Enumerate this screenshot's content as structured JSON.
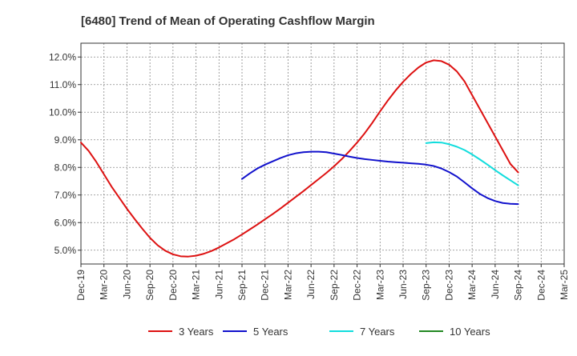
{
  "chart_data": {
    "type": "line",
    "title": "[6480]  Trend of Mean of Operating Cashflow Margin",
    "xlabel": "",
    "ylabel": "",
    "y_ticks": [
      "5.0%",
      "6.0%",
      "7.0%",
      "8.0%",
      "9.0%",
      "10.0%",
      "11.0%",
      "12.0%"
    ],
    "y_tick_values": [
      5.0,
      6.0,
      7.0,
      8.0,
      9.0,
      10.0,
      11.0,
      12.0
    ],
    "ylim": [
      4.5,
      12.5
    ],
    "x_ticks": [
      "Dec-19",
      "Mar-20",
      "Jun-20",
      "Sep-20",
      "Dec-20",
      "Mar-21",
      "Jun-21",
      "Sep-21",
      "Dec-21",
      "Mar-22",
      "Jun-22",
      "Sep-22",
      "Dec-22",
      "Mar-23",
      "Jun-23",
      "Sep-23",
      "Dec-23",
      "Mar-24",
      "Jun-24",
      "Sep-24",
      "Dec-24",
      "Mar-25"
    ],
    "grid": true,
    "legend_position": "bottom",
    "series": [
      {
        "name": "3 Years",
        "color": "#dd1111",
        "x": [
          "Dec-19",
          "Jan-20",
          "Feb-20",
          "Mar-20",
          "Apr-20",
          "May-20",
          "Jun-20",
          "Jul-20",
          "Aug-20",
          "Sep-20",
          "Oct-20",
          "Nov-20",
          "Dec-20",
          "Jan-21",
          "Feb-21",
          "Mar-21",
          "Apr-21",
          "May-21",
          "Jun-21",
          "Jul-21",
          "Aug-21",
          "Sep-21",
          "Oct-21",
          "Nov-21",
          "Dec-21",
          "Jan-22",
          "Feb-22",
          "Mar-22",
          "Apr-22",
          "May-22",
          "Jun-22",
          "Jul-22",
          "Aug-22",
          "Sep-22",
          "Oct-22",
          "Nov-22",
          "Dec-22",
          "Jan-23",
          "Feb-23",
          "Mar-23",
          "Apr-23",
          "May-23",
          "Jun-23",
          "Jul-23",
          "Aug-23",
          "Sep-23",
          "Oct-23",
          "Nov-23",
          "Dec-23",
          "Jan-24",
          "Feb-24",
          "Mar-24",
          "Apr-24",
          "May-24",
          "Jun-24",
          "Jul-24",
          "Aug-24",
          "Sep-24"
        ],
        "values": [
          8.9,
          8.6,
          8.2,
          7.75,
          7.3,
          6.9,
          6.5,
          6.13,
          5.78,
          5.45,
          5.18,
          4.98,
          4.85,
          4.78,
          4.77,
          4.8,
          4.87,
          4.97,
          5.1,
          5.25,
          5.4,
          5.57,
          5.75,
          5.93,
          6.12,
          6.31,
          6.51,
          6.72,
          6.93,
          7.14,
          7.36,
          7.58,
          7.8,
          8.04,
          8.3,
          8.59,
          8.9,
          9.24,
          9.62,
          10.03,
          10.42,
          10.78,
          11.1,
          11.38,
          11.62,
          11.8,
          11.88,
          11.85,
          11.72,
          11.48,
          11.12,
          10.62,
          10.12,
          9.62,
          9.12,
          8.62,
          8.12,
          7.82
        ]
      },
      {
        "name": "5 Years",
        "color": "#1111cc",
        "x": [
          "Sep-21",
          "Oct-21",
          "Nov-21",
          "Dec-21",
          "Jan-22",
          "Feb-22",
          "Mar-22",
          "Apr-22",
          "May-22",
          "Jun-22",
          "Jul-22",
          "Aug-22",
          "Sep-22",
          "Oct-22",
          "Nov-22",
          "Dec-22",
          "Jan-23",
          "Feb-23",
          "Mar-23",
          "Apr-23",
          "May-23",
          "Jun-23",
          "Jul-23",
          "Aug-23",
          "Sep-23",
          "Oct-23",
          "Nov-23",
          "Dec-23",
          "Jan-24",
          "Feb-24",
          "Mar-24",
          "Apr-24",
          "May-24",
          "Jun-24",
          "Jul-24",
          "Aug-24",
          "Sep-24"
        ],
        "values": [
          7.58,
          7.78,
          7.96,
          8.1,
          8.22,
          8.34,
          8.44,
          8.51,
          8.55,
          8.57,
          8.57,
          8.55,
          8.5,
          8.45,
          8.39,
          8.34,
          8.3,
          8.27,
          8.24,
          8.21,
          8.19,
          8.17,
          8.15,
          8.13,
          8.1,
          8.05,
          7.96,
          7.83,
          7.67,
          7.46,
          7.24,
          7.04,
          6.89,
          6.78,
          6.71,
          6.68,
          6.67
        ]
      },
      {
        "name": "7 Years",
        "color": "#11dddd",
        "x": [
          "Sep-23",
          "Oct-23",
          "Nov-23",
          "Dec-23",
          "Jan-24",
          "Feb-24",
          "Mar-24",
          "Apr-24",
          "May-24",
          "Jun-24",
          "Jul-24",
          "Aug-24",
          "Sep-24"
        ],
        "values": [
          8.88,
          8.91,
          8.9,
          8.84,
          8.75,
          8.63,
          8.47,
          8.29,
          8.1,
          7.9,
          7.71,
          7.53,
          7.35
        ]
      },
      {
        "name": "10 Years",
        "color": "#228822",
        "x": [],
        "values": []
      }
    ]
  }
}
